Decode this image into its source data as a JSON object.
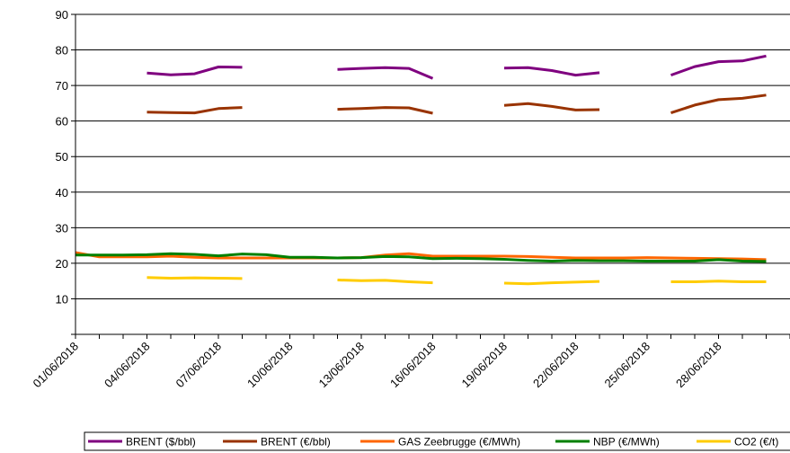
{
  "chart_data": {
    "type": "line",
    "title": "",
    "xlabel": "",
    "ylabel": "",
    "ylim": [
      0,
      90
    ],
    "y_ticks": [
      "",
      "10",
      "20",
      "30",
      "40",
      "50",
      "60",
      "70",
      "80",
      "90"
    ],
    "x_start": "01/06/2018",
    "x_end": "30/06/2018",
    "x_ticks": [
      "01/06/2018",
      "04/06/2018",
      "07/06/2018",
      "10/06/2018",
      "13/06/2018",
      "16/06/2018",
      "19/06/2018",
      "22/06/2018",
      "25/06/2018",
      "28/06/2018"
    ],
    "grid": "horizontal",
    "legend_position": "bottom",
    "x": [
      "01/06/2018",
      "02/06/2018",
      "03/06/2018",
      "04/06/2018",
      "05/06/2018",
      "06/06/2018",
      "07/06/2018",
      "08/06/2018",
      "09/06/2018",
      "10/06/2018",
      "11/06/2018",
      "12/06/2018",
      "13/06/2018",
      "14/06/2018",
      "15/06/2018",
      "16/06/2018",
      "17/06/2018",
      "18/06/2018",
      "19/06/2018",
      "20/06/2018",
      "21/06/2018",
      "22/06/2018",
      "23/06/2018",
      "24/06/2018",
      "25/06/2018",
      "26/06/2018",
      "27/06/2018",
      "28/06/2018",
      "29/06/2018",
      "30/06/2018"
    ],
    "series": [
      {
        "name": "BRENT ($/bbl)",
        "color": "#7f007f",
        "values": [
          null,
          null,
          null,
          73.5,
          73.0,
          73.3,
          75.2,
          75.1,
          null,
          null,
          null,
          74.5,
          74.8,
          75.0,
          74.8,
          72.0,
          null,
          null,
          74.9,
          75.0,
          74.2,
          72.9,
          73.6,
          null,
          null,
          72.9,
          75.3,
          76.7,
          76.9,
          78.3
        ]
      },
      {
        "name": "BRENT (€/bbl)",
        "color": "#993300",
        "values": [
          null,
          null,
          null,
          62.5,
          62.4,
          62.3,
          63.5,
          63.8,
          null,
          null,
          null,
          63.3,
          63.5,
          63.8,
          63.7,
          62.2,
          null,
          null,
          64.4,
          64.9,
          64.1,
          63.1,
          63.2,
          null,
          null,
          62.3,
          64.5,
          66.0,
          66.4,
          67.3
        ]
      },
      {
        "name": "GAS Zeebrugge (€/MWh)",
        "color": "#ff6600",
        "values": [
          23.0,
          21.8,
          21.8,
          21.8,
          22.0,
          21.7,
          21.5,
          21.5,
          21.5,
          21.5,
          21.5,
          21.5,
          21.6,
          22.3,
          22.7,
          22.0,
          22.0,
          22.0,
          22.0,
          21.9,
          21.7,
          21.5,
          21.5,
          21.5,
          21.6,
          21.5,
          21.4,
          21.3,
          21.2,
          21.0
        ]
      },
      {
        "name": "NBP (€/MWh)",
        "color": "#008000",
        "values": [
          22.3,
          22.3,
          22.3,
          22.4,
          22.7,
          22.5,
          22.1,
          22.6,
          22.4,
          21.7,
          21.7,
          21.5,
          21.6,
          21.9,
          21.8,
          21.3,
          21.4,
          21.3,
          21.1,
          20.8,
          20.6,
          20.8,
          20.7,
          20.7,
          20.6,
          20.6,
          20.6,
          21.0,
          20.6,
          20.5
        ]
      },
      {
        "name": "CO2 (€/t)",
        "color": "#ffcc00",
        "values": [
          null,
          null,
          null,
          16.0,
          15.8,
          15.9,
          15.8,
          15.7,
          null,
          null,
          null,
          15.3,
          15.1,
          15.2,
          14.8,
          14.5,
          null,
          null,
          14.4,
          14.2,
          14.5,
          14.7,
          14.9,
          null,
          null,
          14.8,
          14.8,
          15.0,
          14.8,
          14.8
        ]
      }
    ]
  }
}
